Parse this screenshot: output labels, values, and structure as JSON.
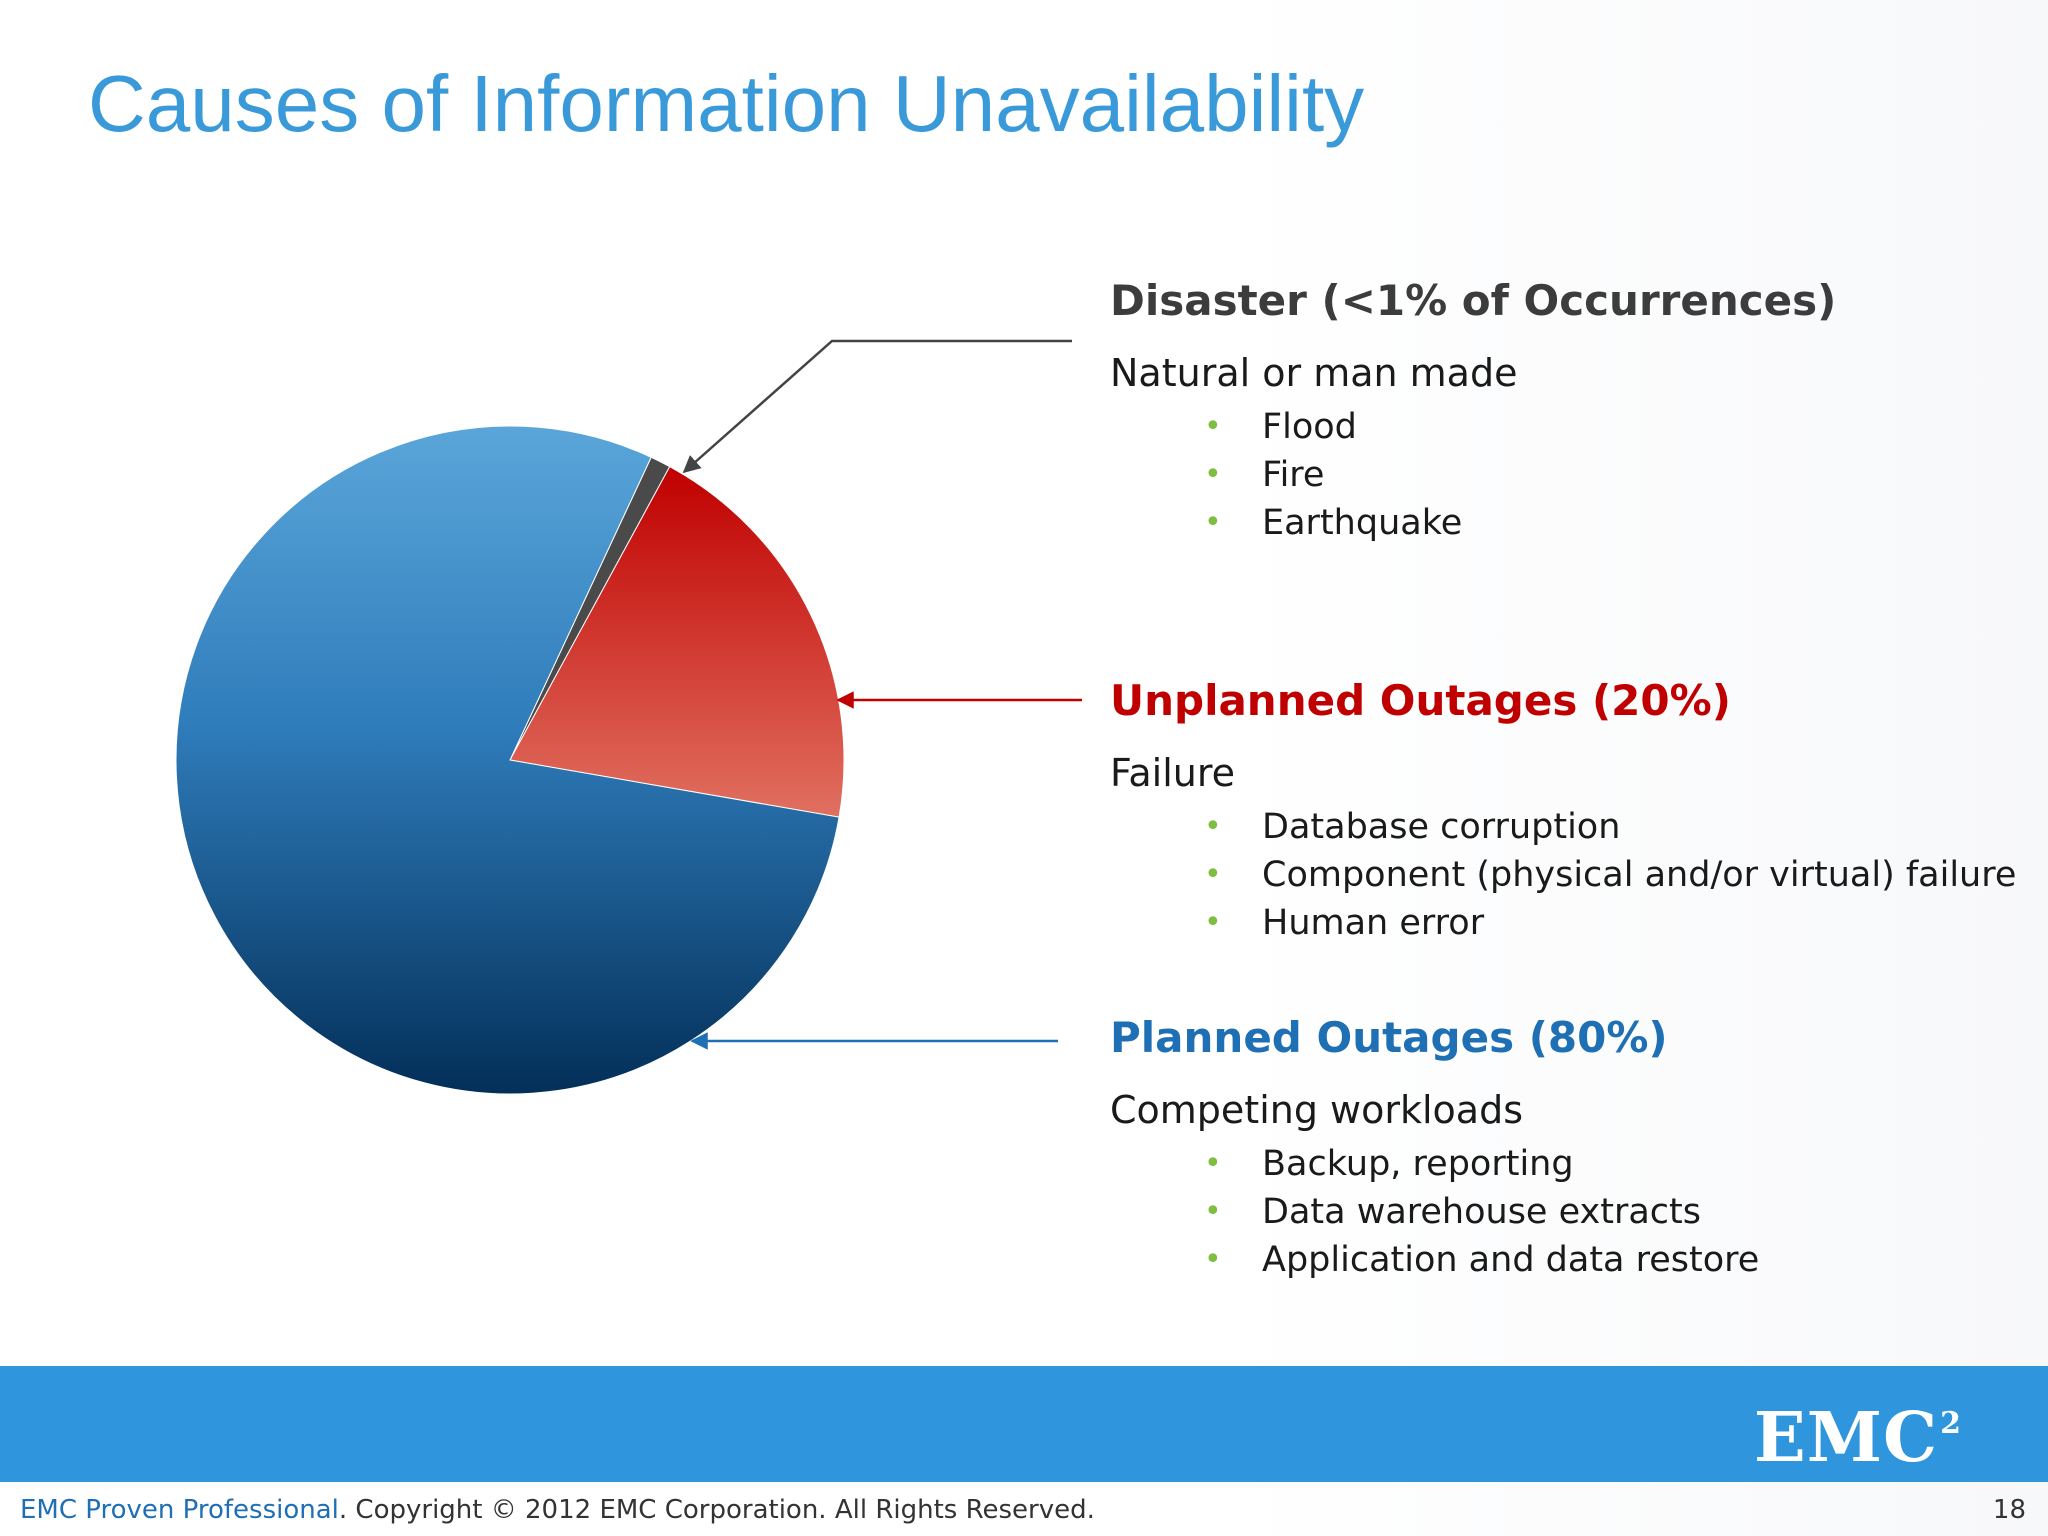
{
  "slide": {
    "title": "Causes of Information Unavailability",
    "page_number": "18"
  },
  "footer": {
    "brand": "EMC Proven Professional",
    "copyright": ". Copyright © 2012 EMC Corporation. All Rights Reserved.",
    "logo_text": "EMC",
    "logo_superscript": "2"
  },
  "sections": {
    "disaster": {
      "heading": "Disaster (<1% of Occurrences)",
      "subhead": "Natural or man made",
      "items": [
        "Flood",
        "Fire",
        "Earthquake"
      ]
    },
    "unplanned": {
      "heading": "Unplanned Outages (20%)",
      "subhead": "Failure",
      "items": [
        "Database corruption",
        "Component (physical and/or virtual) failure",
        "Human error"
      ]
    },
    "planned": {
      "heading": "Planned Outages (80%)",
      "subhead": "Competing workloads",
      "items": [
        "Backup, reporting",
        "Data warehouse extracts",
        "Application and data restore"
      ]
    }
  },
  "colors": {
    "title": "#3a9ad9",
    "disaster": "#555555",
    "unplanned": "#c00000",
    "planned": "#1f6fb5",
    "bullet": "#7fbf3f",
    "footer_band": "#2f95dc"
  },
  "chart_data": {
    "type": "pie",
    "categories": [
      "Planned Outages",
      "Unplanned Outages",
      "Disaster"
    ],
    "values": [
      80,
      20,
      1
    ],
    "start_angle_deg": 25,
    "slice_order_clockwise": [
      "Disaster",
      "Unplanned Outages",
      "Planned Outages"
    ]
  }
}
